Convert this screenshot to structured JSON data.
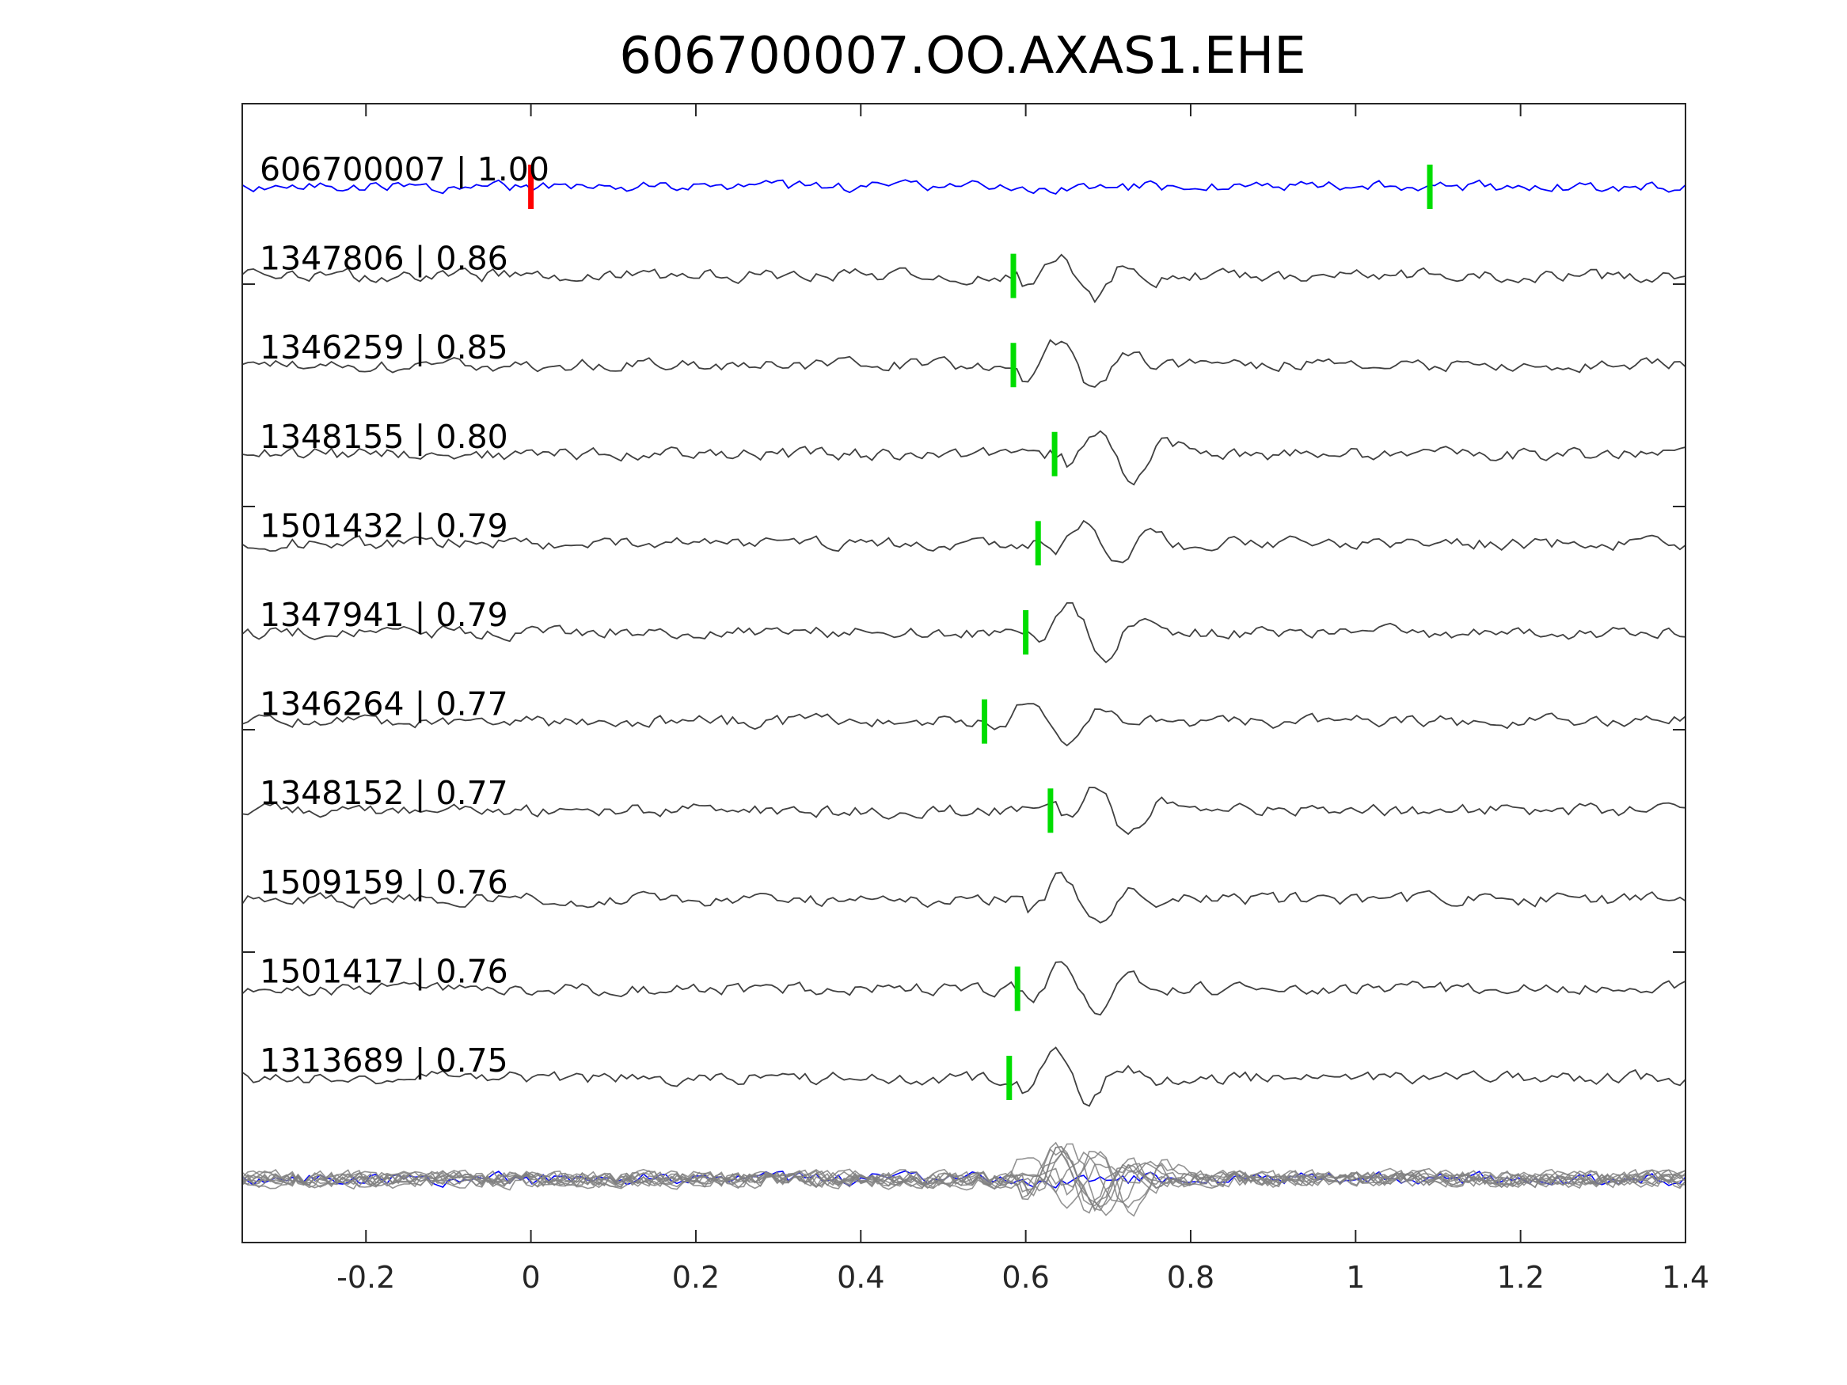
{
  "chart_data": {
    "type": "line",
    "title": "606700007.OO.AXAS1.EHE",
    "xlabel": "",
    "ylabel": "",
    "xlim": [
      -0.35,
      1.4
    ],
    "xticks": [
      -0.2,
      0,
      0.2,
      0.4,
      0.6,
      0.8,
      1,
      1.2,
      1.4
    ],
    "xtick_labels": [
      "-0.2",
      "0",
      "0.2",
      "0.4",
      "0.6",
      "0.8",
      "1",
      "1.2",
      "1.4"
    ],
    "grid": false,
    "colors": {
      "template": "#0000ff",
      "matches": "#404040",
      "stack": "#808080",
      "template_pick": "#ff0000",
      "match_pick": "#00dd00"
    },
    "series": [
      {
        "label": "606700007 | 1.00",
        "pick": 0.0,
        "second_pick": 1.09,
        "template": true
      },
      {
        "label": "1347806 | 0.86",
        "pick": 0.585
      },
      {
        "label": "1346259 | 0.85",
        "pick": 0.585
      },
      {
        "label": "1348155 | 0.80",
        "pick": 0.635
      },
      {
        "label": "1501432 | 0.79",
        "pick": 0.615
      },
      {
        "label": "1347941 | 0.79",
        "pick": 0.6
      },
      {
        "label": "1346264 | 0.77",
        "pick": 0.55
      },
      {
        "label": "1348152 | 0.77",
        "pick": 0.63
      },
      {
        "label": "1509159 | 0.76",
        "pick": null
      },
      {
        "label": "1501417 | 0.76",
        "pick": 0.59
      },
      {
        "label": "1313689 | 0.75",
        "pick": 0.58
      }
    ]
  }
}
